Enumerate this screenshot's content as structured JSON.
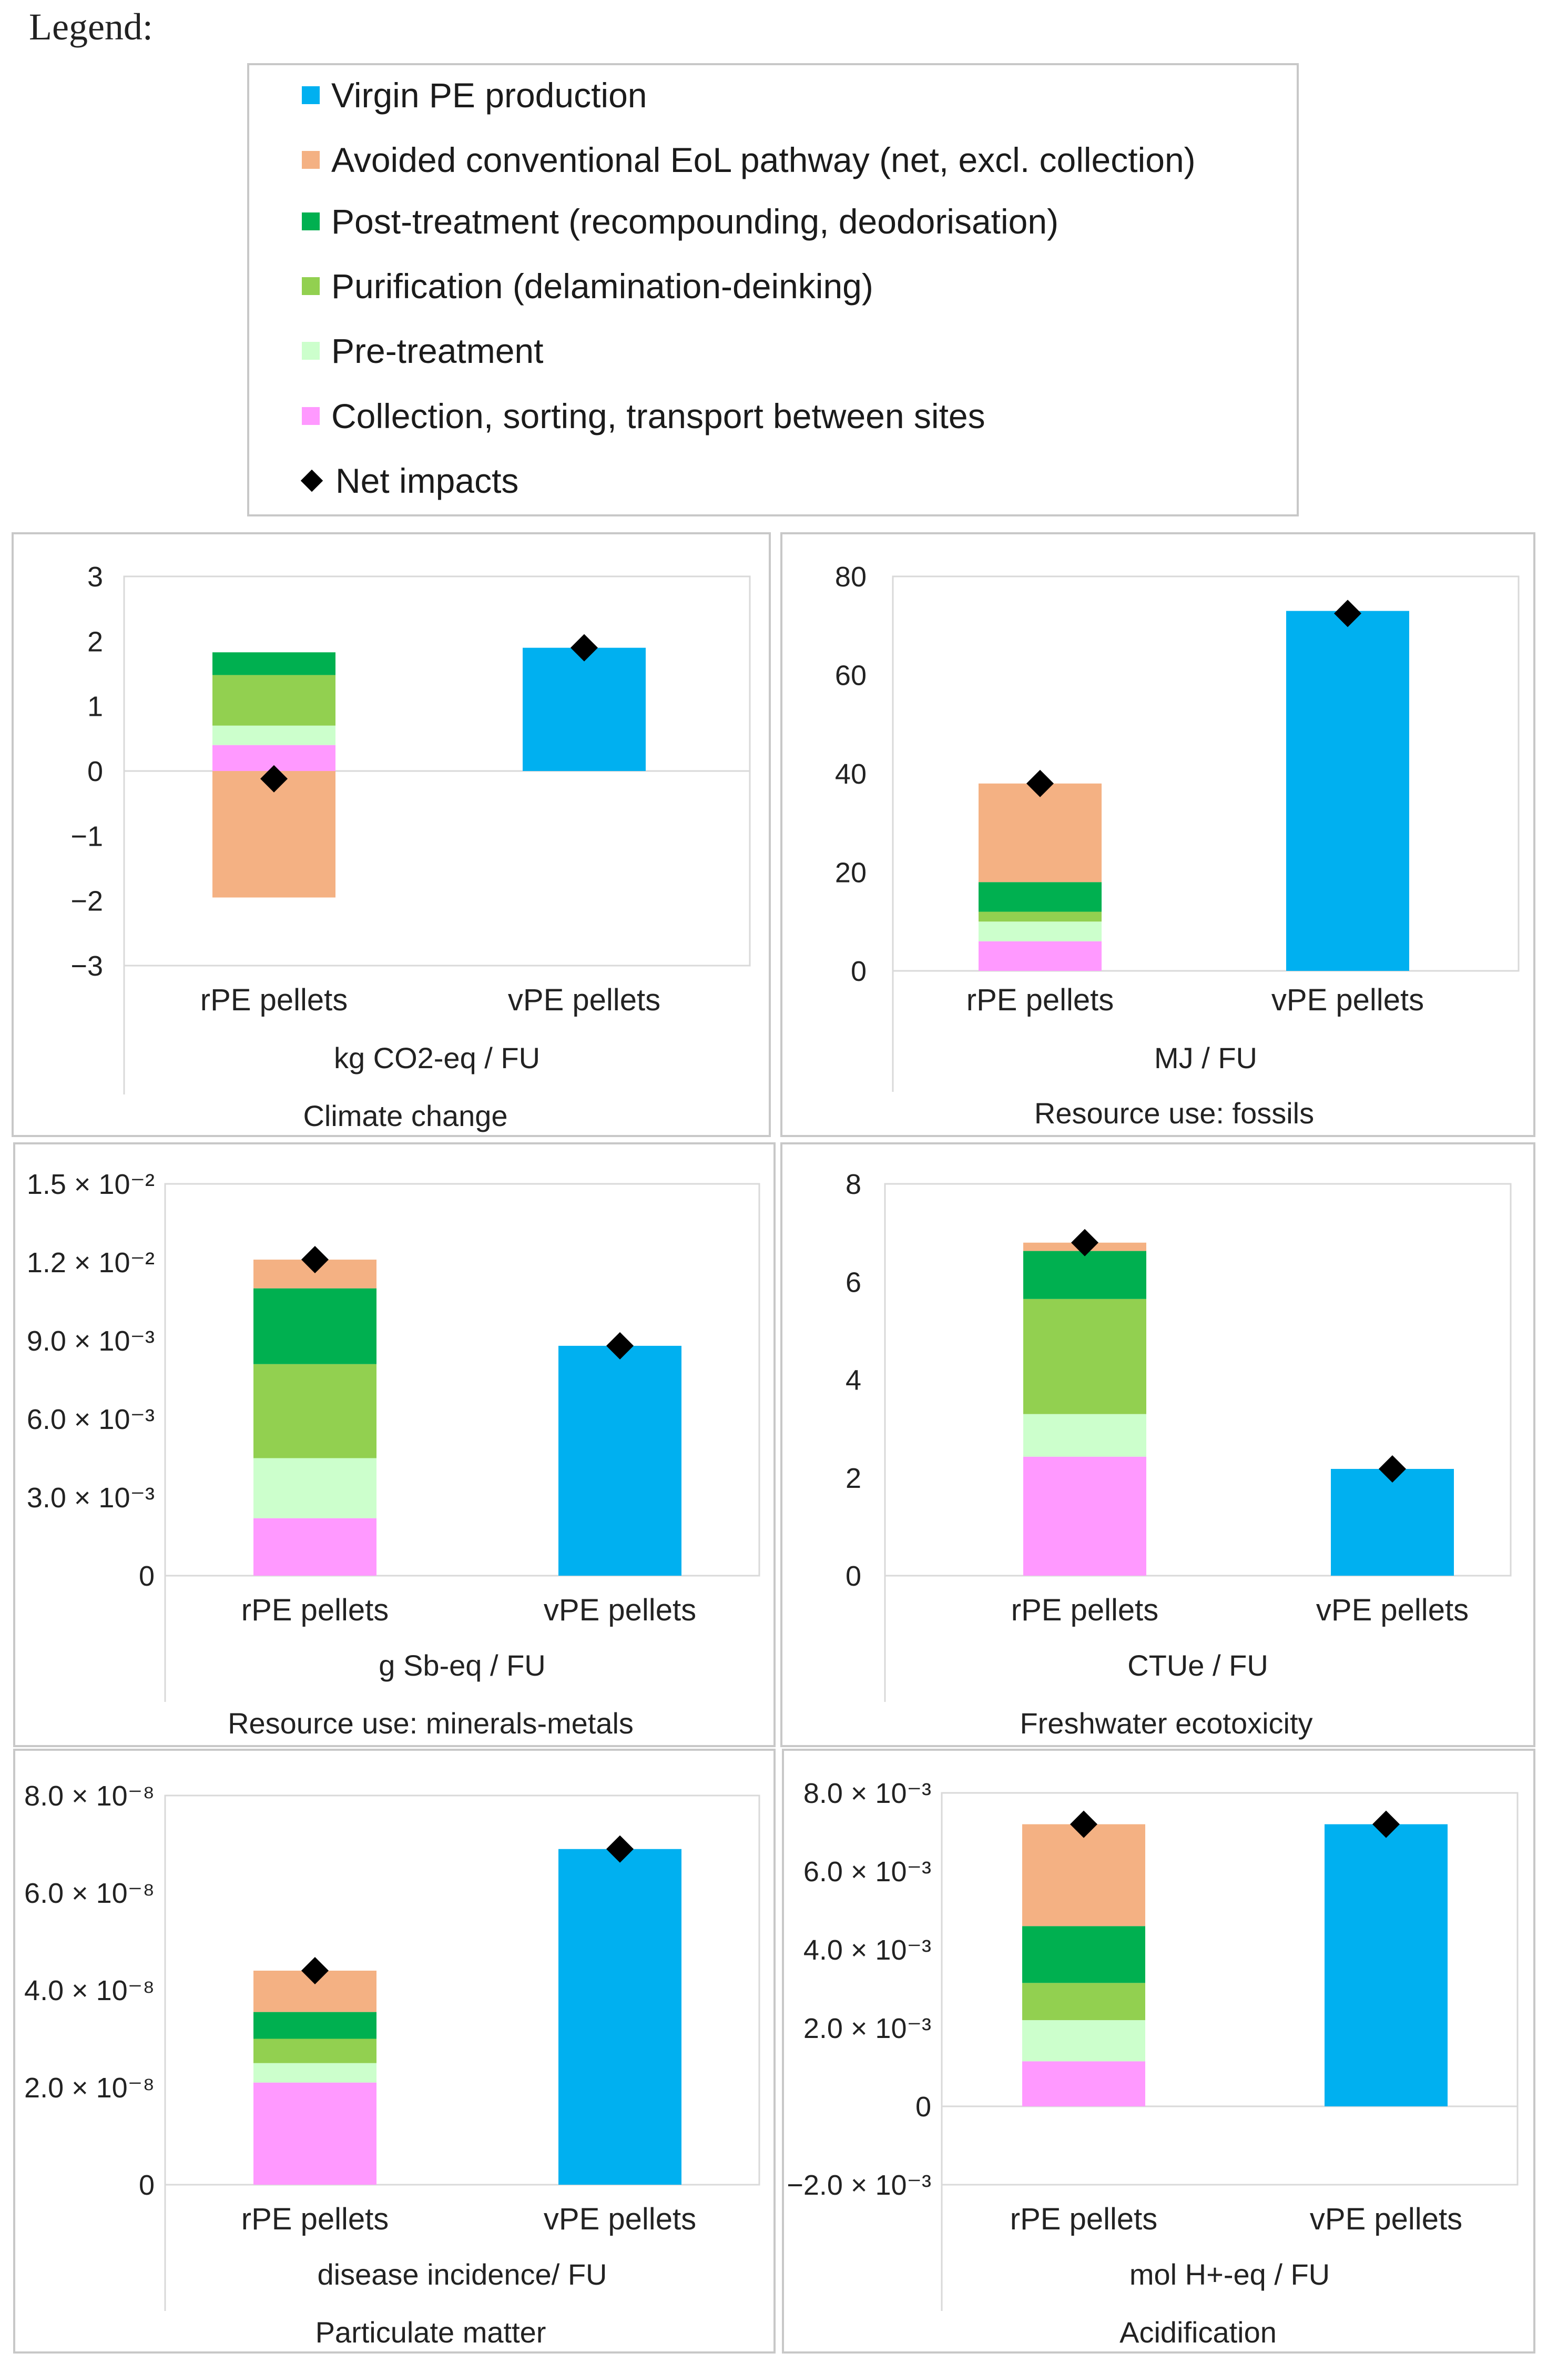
{
  "legend": {
    "title": "Legend:",
    "items": [
      {
        "label": "Virgin PE production",
        "color": "#00b0f0"
      },
      {
        "label": "Avoided conventional EoL pathway (net, excl. collection)",
        "color": "#f4b183"
      },
      {
        "label": "Post-treatment (recompounding, deodorisation)",
        "color": "#00b050"
      },
      {
        "label": "Purification (delamination-deinking)",
        "color": "#92d050"
      },
      {
        "label": "Pre-treatment",
        "color": "#ccffcc"
      },
      {
        "label": "Collection, sorting, transport between sites",
        "color": "#ff99ff"
      },
      {
        "label": "Net impacts",
        "marker": "diamond",
        "color": "#000000"
      }
    ]
  },
  "chart_data": [
    {
      "type": "bar",
      "stacked": true,
      "title": "Climate change",
      "ylabel": "kg CO2-eq / FU",
      "categories": [
        "rPE pellets",
        "vPE pellets"
      ],
      "ylim": [
        -3,
        3
      ],
      "yticks": [
        "3",
        "2",
        "1",
        "0",
        "−1",
        "−2",
        "−3"
      ],
      "series": [
        {
          "name": "Collection, sorting, transport between sites",
          "values": [
            0.4,
            0
          ]
        },
        {
          "name": "Pre-treatment",
          "values": [
            0.3,
            0
          ]
        },
        {
          "name": "Purification (delamination-deinking)",
          "values": [
            0.78,
            0
          ]
        },
        {
          "name": "Post-treatment (recompounding, deodorisation)",
          "values": [
            0.35,
            0
          ]
        },
        {
          "name": "Avoided conventional EoL pathway (net, excl. collection)",
          "values": [
            -1.95,
            0
          ]
        },
        {
          "name": "Virgin PE production",
          "values": [
            0,
            1.9
          ]
        }
      ],
      "net": [
        -0.12,
        1.9
      ]
    },
    {
      "type": "bar",
      "stacked": true,
      "title": "Resource use: fossils",
      "ylabel": "MJ / FU",
      "categories": [
        "rPE pellets",
        "vPE pellets"
      ],
      "ylim": [
        0,
        80
      ],
      "yticks": [
        "80",
        "60",
        "40",
        "20",
        "0"
      ],
      "series": [
        {
          "name": "Collection, sorting, transport between sites",
          "values": [
            6,
            0
          ]
        },
        {
          "name": "Pre-treatment",
          "values": [
            4,
            0
          ]
        },
        {
          "name": "Purification (delamination-deinking)",
          "values": [
            2,
            0
          ]
        },
        {
          "name": "Post-treatment (recompounding, deodorisation)",
          "values": [
            6,
            0
          ]
        },
        {
          "name": "Avoided conventional EoL pathway (net, excl. collection)",
          "values": [
            20,
            0
          ]
        },
        {
          "name": "Virgin PE production",
          "values": [
            0,
            73
          ]
        }
      ],
      "net": [
        38,
        72.5
      ]
    },
    {
      "type": "bar",
      "stacked": true,
      "title": "Resource use: minerals-metals",
      "ylabel": "g Sb-eq / FU",
      "categories": [
        "rPE pellets",
        "vPE pellets"
      ],
      "ylim": [
        0,
        0.015
      ],
      "yticks": [
        "1.5 × 10⁻²",
        "1.2 × 10⁻²",
        "9.0 × 10⁻³",
        "6.0 × 10⁻³",
        "3.0 × 10⁻³",
        "0"
      ],
      "series": [
        {
          "name": "Collection, sorting, transport between sites",
          "values": [
            0.0022,
            0
          ]
        },
        {
          "name": "Pre-treatment",
          "values": [
            0.0023,
            0
          ]
        },
        {
          "name": "Purification (delamination-deinking)",
          "values": [
            0.0036,
            0
          ]
        },
        {
          "name": "Post-treatment (recompounding, deodorisation)",
          "values": [
            0.0029,
            0
          ]
        },
        {
          "name": "Avoided conventional EoL pathway (net, excl. collection)",
          "values": [
            0.0011,
            0
          ]
        },
        {
          "name": "Virgin PE production",
          "values": [
            0,
            0.0088
          ]
        }
      ],
      "net": [
        0.0121,
        0.0088
      ]
    },
    {
      "type": "bar",
      "stacked": true,
      "title": "Freshwater ecotoxicity",
      "ylabel": "CTUe / FU",
      "categories": [
        "rPE pellets",
        "vPE pellets"
      ],
      "ylim": [
        0,
        8
      ],
      "yticks": [
        "8",
        "6",
        "4",
        "2",
        "0"
      ],
      "series": [
        {
          "name": "Collection, sorting, transport between sites",
          "values": [
            2.43,
            0
          ]
        },
        {
          "name": "Pre-treatment",
          "values": [
            0.87,
            0
          ]
        },
        {
          "name": "Purification (delamination-deinking)",
          "values": [
            2.35,
            0
          ]
        },
        {
          "name": "Post-treatment (recompounding, deodorisation)",
          "values": [
            0.98,
            0
          ]
        },
        {
          "name": "Avoided conventional EoL pathway (net, excl. collection)",
          "values": [
            0.17,
            0
          ]
        },
        {
          "name": "Virgin PE production",
          "values": [
            0,
            2.18
          ]
        }
      ],
      "net": [
        6.8,
        2.18
      ]
    },
    {
      "type": "bar",
      "stacked": true,
      "title": "Particulate matter",
      "ylabel": "disease incidence/ FU",
      "categories": [
        "rPE pellets",
        "vPE pellets"
      ],
      "ylim": [
        0,
        8e-08
      ],
      "yticks": [
        "8.0 × 10⁻⁸",
        "6.0 × 10⁻⁸",
        "4.0 × 10⁻⁸",
        "2.0 × 10⁻⁸",
        "0"
      ],
      "series": [
        {
          "name": "Collection, sorting, transport between sites",
          "values": [
            2.1e-08,
            0
          ]
        },
        {
          "name": "Pre-treatment",
          "values": [
            4e-09,
            0
          ]
        },
        {
          "name": "Purification (delamination-deinking)",
          "values": [
            5e-09,
            0
          ]
        },
        {
          "name": "Post-treatment (recompounding, deodorisation)",
          "values": [
            5.5e-09,
            0
          ]
        },
        {
          "name": "Avoided conventional EoL pathway (net, excl. collection)",
          "values": [
            8.5e-09,
            0
          ]
        },
        {
          "name": "Virgin PE production",
          "values": [
            0,
            6.9e-08
          ]
        }
      ],
      "net": [
        4.4e-08,
        6.9e-08
      ]
    },
    {
      "type": "bar",
      "stacked": true,
      "title": "Acidification",
      "ylabel": "mol H+-eq / FU",
      "categories": [
        "rPE pellets",
        "vPE pellets"
      ],
      "ylim": [
        -0.002,
        0.008
      ],
      "yticks": [
        "8.0 × 10⁻³",
        "6.0 × 10⁻³",
        "4.0 × 10⁻³",
        "2.0 × 10⁻³",
        "0",
        "−2.0 × 10⁻³"
      ],
      "series": [
        {
          "name": "Collection, sorting, transport between sites",
          "values": [
            0.00115,
            0
          ]
        },
        {
          "name": "Pre-treatment",
          "values": [
            0.00105,
            0
          ]
        },
        {
          "name": "Purification (delamination-deinking)",
          "values": [
            0.00095,
            0
          ]
        },
        {
          "name": "Post-treatment (recompounding, deodorisation)",
          "values": [
            0.00145,
            0
          ]
        },
        {
          "name": "Avoided conventional EoL pathway (net, excl. collection)",
          "values": [
            0.0026,
            0
          ]
        },
        {
          "name": "Virgin PE production",
          "values": [
            0,
            0.0072
          ]
        }
      ],
      "net": [
        0.0072,
        0.0072
      ]
    }
  ]
}
